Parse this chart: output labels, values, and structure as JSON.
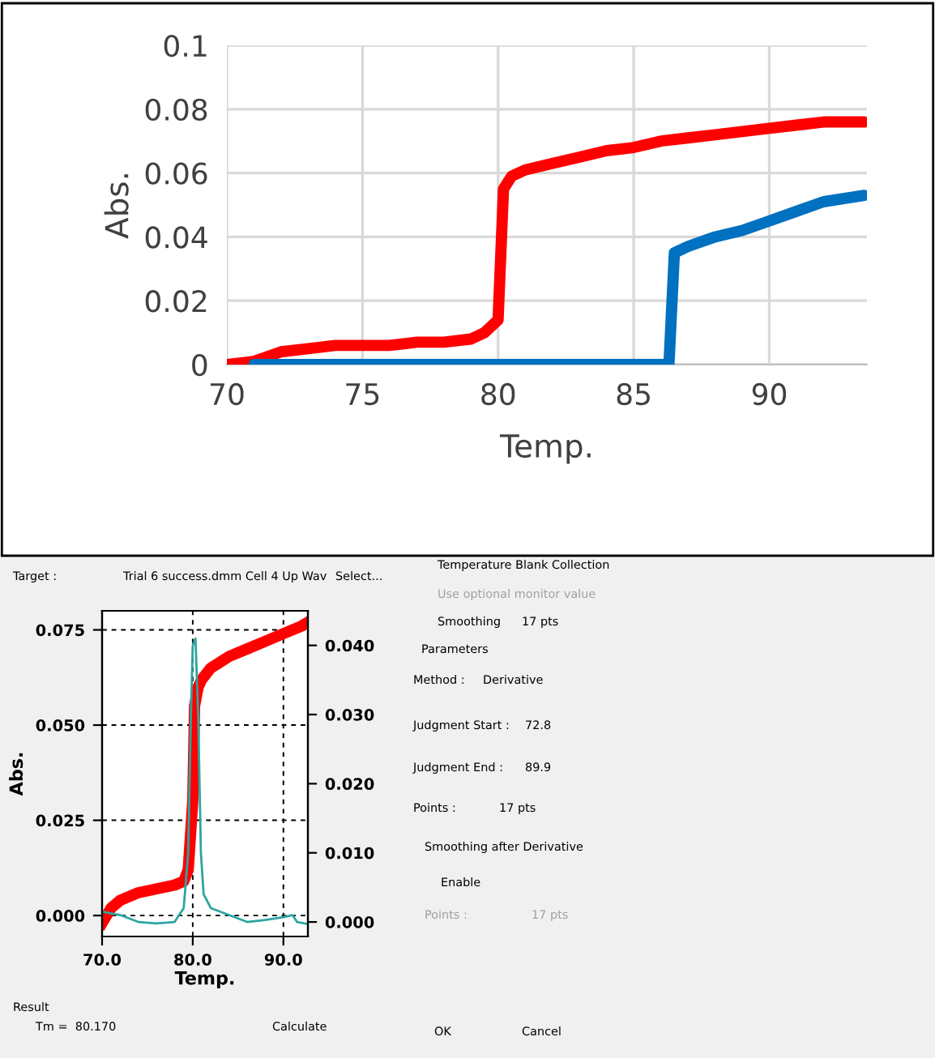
{
  "chart_data": [
    {
      "type": "line",
      "xlabel": "Temp.",
      "ylabel": "Abs.",
      "xlim": [
        70,
        93.6
      ],
      "ylim": [
        0,
        0.1
      ],
      "xticks": [
        70,
        75,
        80,
        85,
        90
      ],
      "yticks": [
        0,
        0.02,
        0.04,
        0.06,
        0.08,
        0.1
      ],
      "grid": true,
      "line_style": "solid",
      "marker": "none",
      "series": [
        {
          "color": "#ff0000",
          "x": [
            70,
            71,
            72,
            73,
            74,
            76,
            77,
            78,
            79,
            79.5,
            80,
            80.2,
            80.5,
            81,
            82,
            83,
            84,
            85,
            86,
            87,
            88,
            89,
            90,
            91,
            92,
            93.5
          ],
          "values": [
            0,
            0.001,
            0.004,
            0.005,
            0.006,
            0.006,
            0.007,
            0.007,
            0.008,
            0.01,
            0.014,
            0.055,
            0.059,
            0.061,
            0.063,
            0.065,
            0.067,
            0.068,
            0.07,
            0.071,
            0.072,
            0.073,
            0.074,
            0.075,
            0.076,
            0.076
          ]
        },
        {
          "color": "#0070c0",
          "x": [
            71,
            80,
            86.3,
            86.5,
            87,
            88,
            89,
            90,
            91,
            92,
            93.5
          ],
          "values": [
            0,
            0,
            0,
            0.035,
            0.037,
            0.04,
            0.042,
            0.045,
            0.048,
            0.051,
            0.053
          ]
        }
      ]
    },
    {
      "type": "line",
      "xlabel": "Temp.",
      "ylabel": "Abs.",
      "xlim": [
        70,
        92.7
      ],
      "ylim": [
        -0.0055,
        0.08
      ],
      "y2lim": [
        -0.0021,
        0.045
      ],
      "xticks": [
        {
          "value": 70,
          "label": "70.0"
        },
        {
          "value": 80,
          "label": "80.0"
        },
        {
          "value": 90,
          "label": "90.0"
        }
      ],
      "yticks": [
        {
          "value": 0,
          "label": "0.000"
        },
        {
          "value": 0.025,
          "label": "0.025"
        },
        {
          "value": 0.05,
          "label": "0.050"
        },
        {
          "value": 0.075,
          "label": "0.075"
        }
      ],
      "y2ticks": [
        {
          "value": 0,
          "label": "0.000"
        },
        {
          "value": 0.01,
          "label": "0.010"
        },
        {
          "value": 0.02,
          "label": "0.020"
        },
        {
          "value": 0.03,
          "label": "0.030"
        },
        {
          "value": 0.04,
          "label": "0.040"
        }
      ],
      "grid": true,
      "line_style": "solid",
      "marker": "none",
      "series": [
        {
          "color": "#2ca5a0",
          "axis": "y2",
          "x": [
            70,
            72,
            74,
            76,
            78,
            79,
            79.5,
            79.8,
            80,
            80.3,
            80.6,
            80.9,
            81.2,
            82,
            84,
            86,
            88,
            90,
            91,
            91.5,
            92.7
          ],
          "values": [
            0.0015,
            0.001,
            0,
            -0.0002,
            0,
            0.002,
            0.01,
            0.03,
            0.04,
            0.041,
            0.03,
            0.01,
            0.004,
            0.002,
            0.001,
            0,
            0.0003,
            0.0007,
            0.001,
            0,
            -0.0003
          ]
        },
        {
          "color": "#ff0000",
          "x": [
            70,
            71,
            72,
            74,
            76,
            78,
            79,
            79.5,
            80,
            80.2,
            80.6,
            81,
            82,
            84,
            86,
            88,
            90,
            92,
            92.7
          ],
          "values": [
            -0.002,
            0.002,
            0.004,
            0.006,
            0.007,
            0.008,
            0.009,
            0.012,
            0.03,
            0.055,
            0.06,
            0.062,
            0.065,
            0.068,
            0.07,
            0.072,
            0.074,
            0.076,
            0.077
          ]
        }
      ]
    },
    {
      "type": "other",
      "annotations": [
        "Target :",
        "Trial 6 success.dmm Cell 4 Up Wav",
        "Select...",
        "Temperature Blank Collection",
        "Use optional monitor value",
        "Smoothing",
        "17 pts",
        "Parameters",
        "Method :",
        "Derivative",
        "Judgment Start :",
        "72.8",
        "Judgment End :",
        "89.9",
        "Points :",
        "17 pts",
        "Smoothing after Derivative",
        "Enable",
        "Points :",
        "17 pts",
        "Result",
        "Tm =  80.170",
        "Calculate",
        "OK",
        "Cancel"
      ]
    }
  ]
}
